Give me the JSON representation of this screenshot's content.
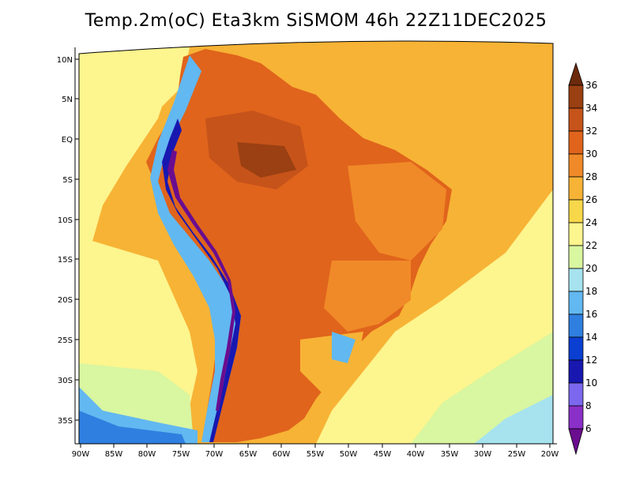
{
  "title": "Temp.2m(oC) Eta3km SiSMOM 46h 22Z11DEC2025",
  "variable": "Temp.2m(oC)",
  "model": "Eta3km SiSMOM",
  "forecast_hour": "46h",
  "valid_time": "22Z11DEC2025",
  "lat_labels": [
    "10N",
    "5N",
    "EQ",
    "5S",
    "10S",
    "15S",
    "20S",
    "25S",
    "30S",
    "35S"
  ],
  "lon_labels": [
    "90W",
    "85W",
    "80W",
    "75W",
    "70W",
    "65W",
    "60W",
    "55W",
    "50W",
    "45W",
    "40W",
    "35W",
    "30W",
    "25W",
    "20W"
  ],
  "colorbar": {
    "labels": [
      "6",
      "8",
      "10",
      "12",
      "14",
      "16",
      "18",
      "20",
      "22",
      "24",
      "26",
      "28",
      "30",
      "32",
      "34",
      "36"
    ],
    "colors": [
      "#6a0d8f",
      "#8b2fc9",
      "#7b68ee",
      "#1818b0",
      "#0a3fd1",
      "#2f7fe0",
      "#62b8f0",
      "#a6e3ef",
      "#d9f6a0",
      "#fdf58e",
      "#f8d84a",
      "#f7b335",
      "#f08a28",
      "#e0641c",
      "#c6531a",
      "#9a4012",
      "#6b2a0c"
    ]
  },
  "colors": {
    "ocean_warm": "#f7b335",
    "ocean_mild": "#fdf58e",
    "ocean_cool": "#d9f6a0",
    "land_hot": "#e0641c",
    "andes_cold": "#6a0d8f"
  }
}
